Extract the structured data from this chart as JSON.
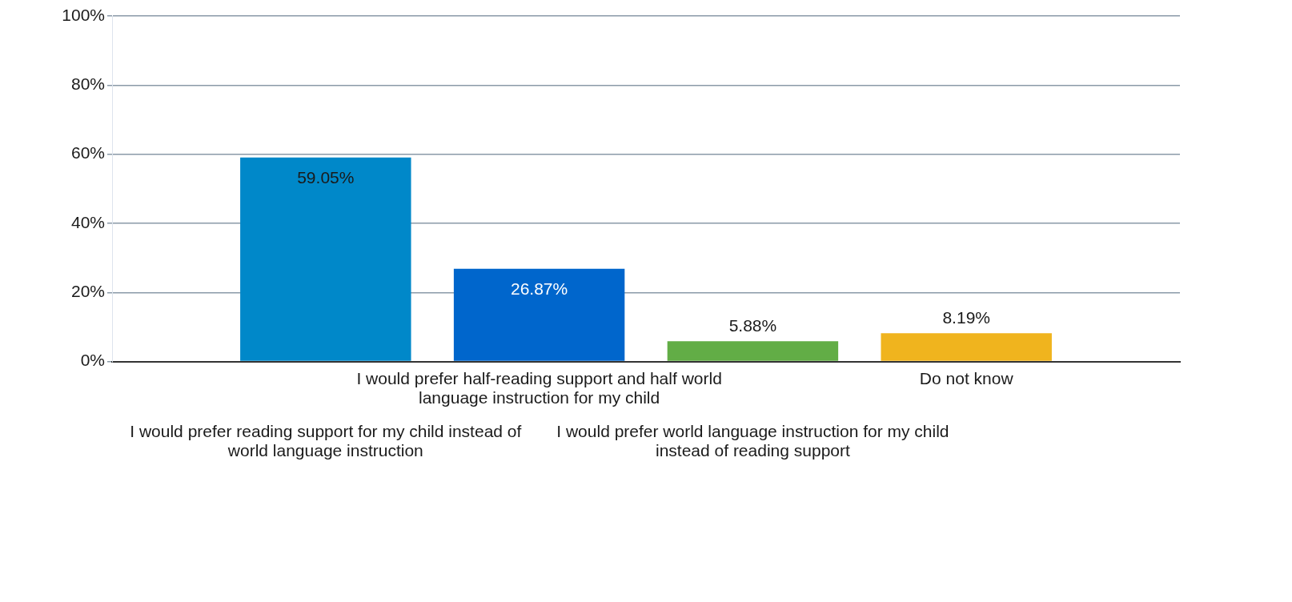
{
  "chart_data": {
    "type": "bar",
    "categories": [
      "I would prefer reading support for my child instead of world language instruction",
      "I would prefer half-reading support and half world language instruction for my child",
      "I would prefer world language instruction for my child instead of reading support",
      "Do not know"
    ],
    "values": [
      59.05,
      26.87,
      5.88,
      8.19
    ],
    "colors": [
      "#0088c9",
      "#0066cc",
      "#62ad46",
      "#f0b41e"
    ],
    "value_labels": [
      "59.05%",
      "26.87%",
      "5.88%",
      "8.19%"
    ],
    "ylim": [
      0,
      100
    ],
    "yticks": [
      {
        "value": 0,
        "label": "0%"
      },
      {
        "value": 20,
        "label": "20%"
      },
      {
        "value": 40,
        "label": "40%"
      },
      {
        "value": 60,
        "label": "60%"
      },
      {
        "value": 80,
        "label": "80%"
      },
      {
        "value": 100,
        "label": "100%"
      }
    ],
    "grid": "y",
    "legend": false
  }
}
